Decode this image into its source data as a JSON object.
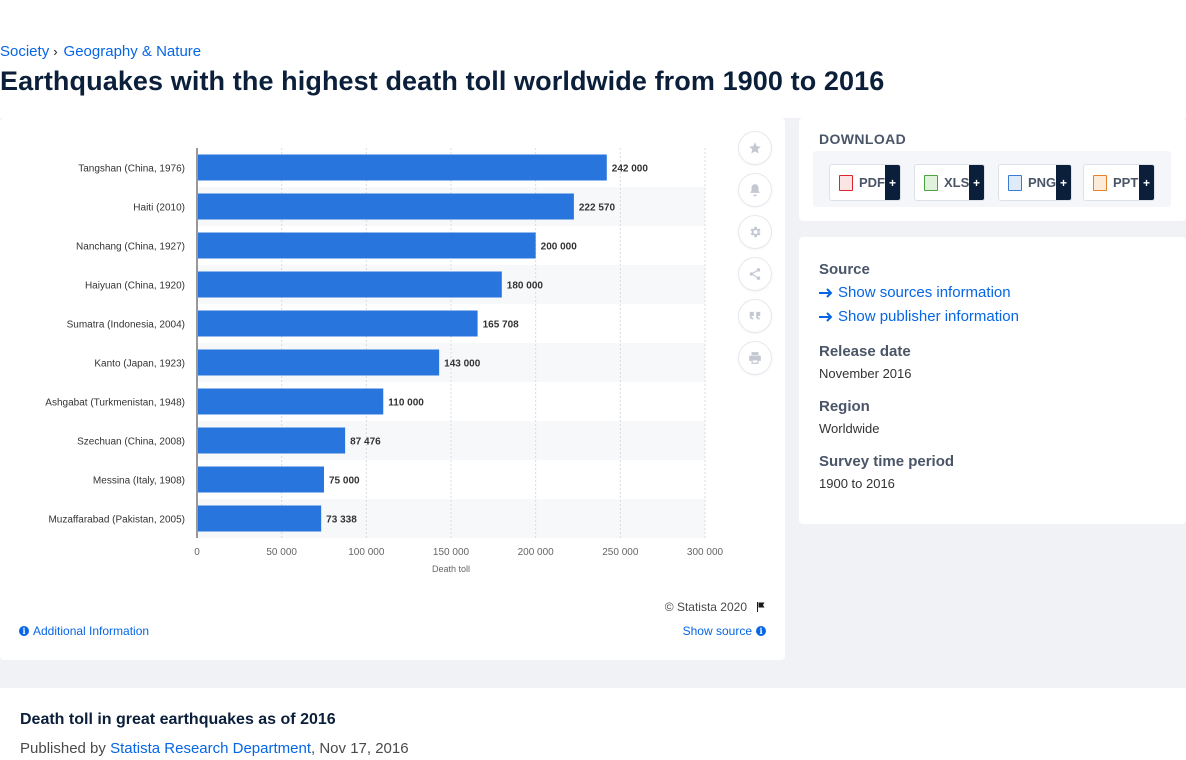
{
  "breadcrumb": {
    "items": [
      "Society",
      "Geography & Nature"
    ],
    "separator": "›"
  },
  "page_title": "Earthquakes with the highest death toll worldwide from 1900 to 2016",
  "chart_data": {
    "type": "bar",
    "orientation": "horizontal",
    "categories": [
      "Tangshan (China, 1976)",
      "Haiti (2010)",
      "Nanchang (China, 1927)",
      "Haiyuan (China, 1920)",
      "Sumatra (Indonesia, 2004)",
      "Kanto (Japan, 1923)",
      "Ashgabat (Turkmenistan, 1948)",
      "Szechuan (China, 2008)",
      "Messina (Italy, 1908)",
      "Muzaffarabad (Pakistan, 2005)"
    ],
    "values": [
      242000,
      222570,
      200000,
      180000,
      165708,
      143000,
      110000,
      87476,
      75000,
      73338
    ],
    "value_labels": [
      "242 000",
      "222 570",
      "200 000",
      "180 000",
      "165 708",
      "143 000",
      "110 000",
      "87 476",
      "75 000",
      "73 338"
    ],
    "x_ticks": [
      0,
      50000,
      100000,
      150000,
      200000,
      250000,
      300000
    ],
    "x_tick_labels": [
      "0",
      "50 000",
      "100 000",
      "150 000",
      "200 000",
      "250 000",
      "300 000"
    ],
    "xlabel": "Death toll",
    "ylabel": "",
    "xlim": [
      0,
      300000
    ],
    "grid": true,
    "bar_color": "#2876dd"
  },
  "chart_footer": {
    "copyright": "© Statista 2020",
    "additional_info": "Additional Information",
    "show_source": "Show source"
  },
  "toolbar": {
    "icons": [
      "star-icon",
      "bell-icon",
      "gear-icon",
      "share-icon",
      "quote-icon",
      "print-icon"
    ]
  },
  "download": {
    "title": "DOWNLOAD",
    "formats": [
      {
        "label": "PDF",
        "plus": "+",
        "color": "#d9262c"
      },
      {
        "label": "XLS",
        "plus": "+",
        "color": "#4aa33e"
      },
      {
        "label": "PNG",
        "plus": "+",
        "color": "#3a7bd5"
      },
      {
        "label": "PPT",
        "plus": "+",
        "color": "#e8812b"
      }
    ]
  },
  "info": {
    "source_label": "Source",
    "show_sources": "Show sources information",
    "show_publisher": "Show publisher information",
    "release_date_label": "Release date",
    "release_date": "November 2016",
    "region_label": "Region",
    "region": "Worldwide",
    "survey_label": "Survey time period",
    "survey_period": "1900 to 2016"
  },
  "bottom": {
    "title": "Death toll in great earthquakes as of 2016",
    "published_by": "Published by",
    "publisher": "Statista Research Department",
    "date": ", Nov 17, 2016"
  },
  "colors": {
    "accent": "#0666e5",
    "dark": "#0b1f3a"
  }
}
